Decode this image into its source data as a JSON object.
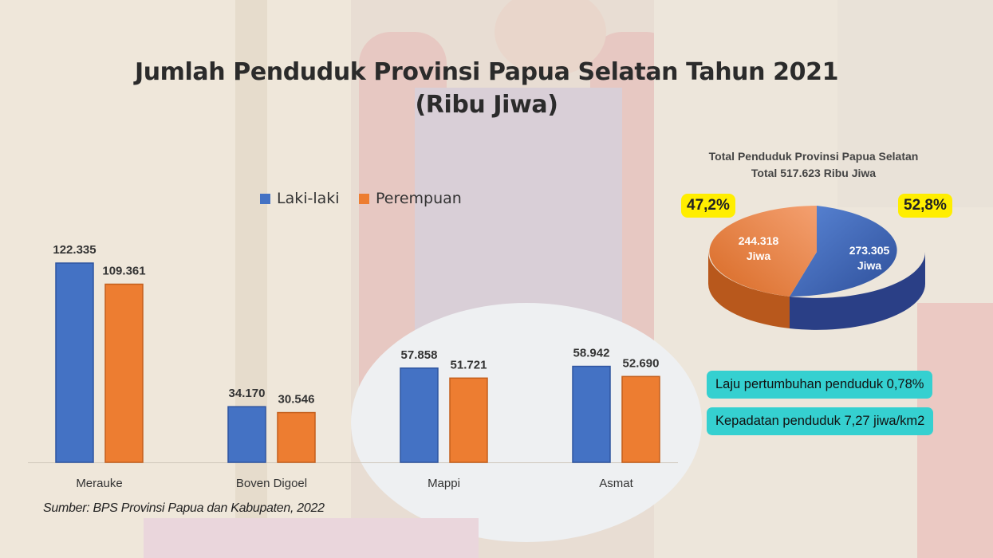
{
  "title_line1": "Jumlah Penduduk Provinsi Papua Selatan Tahun 2021",
  "title_line2": "(Ribu Jiwa)",
  "colors": {
    "laki": "#4472c4",
    "perempuan": "#ed7d31",
    "highlight": "#ffee00",
    "info_bg": "#35d0d0"
  },
  "chart_data": [
    {
      "type": "bar",
      "title": "Jumlah Penduduk Provinsi Papua Selatan Tahun 2021 (Ribu Jiwa)",
      "categories": [
        "Merauke",
        "Boven Digoel",
        "Mappi",
        "Asmat"
      ],
      "series": [
        {
          "name": "Laki-laki",
          "values": [
            122.335,
            34.17,
            57.858,
            58.942
          ],
          "labels": [
            "122.335",
            "34.170",
            "57.858",
            "58.942"
          ]
        },
        {
          "name": "Perempuan",
          "values": [
            109.361,
            30.546,
            51.721,
            52.69
          ],
          "labels": [
            "109.361",
            "30.546",
            "51.721",
            "52.690"
          ]
        }
      ],
      "legend": "top",
      "grid": false
    },
    {
      "type": "pie",
      "title_line1": "Total Penduduk Provinsi Papua Selatan",
      "title_line2": "Total  517.623 Ribu Jiwa",
      "slices": [
        {
          "name": "Perempuan",
          "value": 244.318,
          "label_value": "244.318",
          "label_unit": "Jiwa",
          "percent": "47,2%"
        },
        {
          "name": "Laki-laki",
          "value": 273.305,
          "label_value": "273.305",
          "label_unit": "Jiwa",
          "percent": "52,8%"
        }
      ]
    }
  ],
  "info": {
    "growth": "Laju pertumbuhan penduduk 0,78%",
    "density": "Kepadatan penduduk 7,27 jiwa/km2"
  },
  "source": "Sumber: BPS Provinsi Papua dan Kabupaten, 2022"
}
